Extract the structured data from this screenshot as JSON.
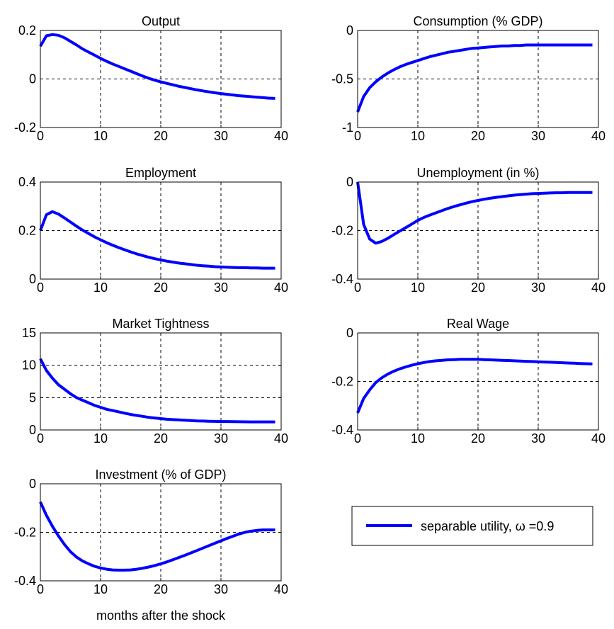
{
  "figure": {
    "xlabel": "months after the shock"
  },
  "legend": {
    "label": "separable utility, ω =0.9",
    "color": "#0000ff"
  },
  "chart_data": [
    {
      "type": "line",
      "title": "Output",
      "xlim": [
        0,
        40
      ],
      "ylim": [
        -0.2,
        0.2
      ],
      "xticks": [
        0,
        10,
        20,
        30,
        40
      ],
      "yticks": [
        -0.2,
        0,
        0.2
      ],
      "ytick_labels": [
        "-0.2",
        "0",
        "0.2"
      ],
      "xticks_shown": true,
      "grid": true,
      "series": [
        {
          "color": "#0000ff",
          "x": [
            0,
            1,
            2,
            3,
            4,
            5,
            6,
            7,
            8,
            9,
            10,
            11,
            12,
            13,
            14,
            15,
            16,
            17,
            18,
            19,
            20,
            21,
            22,
            23,
            24,
            25,
            26,
            27,
            28,
            29,
            30,
            31,
            32,
            33,
            34,
            35,
            36,
            37,
            38,
            39
          ],
          "values": [
            0.135,
            0.178,
            0.183,
            0.18,
            0.17,
            0.155,
            0.14,
            0.124,
            0.111,
            0.098,
            0.085,
            0.073,
            0.062,
            0.052,
            0.042,
            0.032,
            0.022,
            0.012,
            0.003,
            -0.005,
            -0.012,
            -0.018,
            -0.024,
            -0.03,
            -0.035,
            -0.04,
            -0.045,
            -0.049,
            -0.053,
            -0.057,
            -0.06,
            -0.063,
            -0.066,
            -0.069,
            -0.071,
            -0.073,
            -0.075,
            -0.077,
            -0.079,
            -0.08
          ]
        }
      ]
    },
    {
      "type": "line",
      "title": "Consumption (% GDP)",
      "xlim": [
        0,
        40
      ],
      "ylim": [
        -1,
        0
      ],
      "xticks": [
        0,
        10,
        20,
        30,
        40
      ],
      "yticks": [
        -1,
        -0.5,
        0
      ],
      "ytick_labels": [
        "-1",
        "-0.5",
        "0"
      ],
      "xticks_shown": true,
      "grid": true,
      "series": [
        {
          "color": "#0000ff",
          "x": [
            0,
            1,
            2,
            3,
            4,
            5,
            6,
            7,
            8,
            9,
            10,
            11,
            12,
            13,
            14,
            15,
            16,
            17,
            18,
            19,
            20,
            21,
            22,
            23,
            24,
            25,
            26,
            27,
            28,
            29,
            30,
            31,
            32,
            33,
            34,
            35,
            36,
            37,
            38,
            39
          ],
          "values": [
            -0.84,
            -0.68,
            -0.59,
            -0.53,
            -0.48,
            -0.44,
            -0.405,
            -0.375,
            -0.35,
            -0.33,
            -0.31,
            -0.29,
            -0.27,
            -0.255,
            -0.24,
            -0.225,
            -0.215,
            -0.205,
            -0.195,
            -0.185,
            -0.18,
            -0.175,
            -0.17,
            -0.165,
            -0.16,
            -0.16,
            -0.155,
            -0.155,
            -0.15,
            -0.15,
            -0.15,
            -0.15,
            -0.15,
            -0.15,
            -0.15,
            -0.15,
            -0.15,
            -0.15,
            -0.15,
            -0.15
          ]
        }
      ]
    },
    {
      "type": "line",
      "title": "Employment",
      "xlim": [
        0,
        40
      ],
      "ylim": [
        0,
        0.4
      ],
      "xticks": [
        0,
        10,
        20,
        30,
        40
      ],
      "yticks": [
        0,
        0.2,
        0.4
      ],
      "ytick_labels": [
        "0",
        "0.2",
        "0.4"
      ],
      "xticks_shown": true,
      "grid": true,
      "series": [
        {
          "color": "#0000ff",
          "x": [
            0,
            1,
            2,
            3,
            4,
            5,
            6,
            7,
            8,
            9,
            10,
            11,
            12,
            13,
            14,
            15,
            16,
            17,
            18,
            19,
            20,
            21,
            22,
            23,
            24,
            25,
            26,
            27,
            28,
            29,
            30,
            31,
            32,
            33,
            34,
            35,
            36,
            37,
            38,
            39
          ],
          "values": [
            0.2,
            0.265,
            0.278,
            0.268,
            0.252,
            0.235,
            0.218,
            0.202,
            0.188,
            0.174,
            0.162,
            0.15,
            0.14,
            0.13,
            0.121,
            0.112,
            0.104,
            0.097,
            0.09,
            0.084,
            0.079,
            0.074,
            0.07,
            0.066,
            0.063,
            0.06,
            0.057,
            0.055,
            0.053,
            0.051,
            0.05,
            0.049,
            0.048,
            0.047,
            0.047,
            0.046,
            0.046,
            0.045,
            0.045,
            0.045
          ]
        }
      ]
    },
    {
      "type": "line",
      "title": "Unemployment (in %)",
      "xlim": [
        0,
        40
      ],
      "ylim": [
        -0.4,
        0
      ],
      "xticks": [
        0,
        10,
        20,
        30,
        40
      ],
      "yticks": [
        -0.4,
        -0.2,
        0
      ],
      "ytick_labels": [
        "-0.4",
        "-0.2",
        "0"
      ],
      "xticks_shown": true,
      "grid": true,
      "series": [
        {
          "color": "#0000ff",
          "x": [
            0,
            1,
            2,
            3,
            4,
            5,
            6,
            7,
            8,
            9,
            10,
            11,
            12,
            13,
            14,
            15,
            16,
            17,
            18,
            19,
            20,
            21,
            22,
            23,
            24,
            25,
            26,
            27,
            28,
            29,
            30,
            31,
            32,
            33,
            34,
            35,
            36,
            37,
            38,
            39
          ],
          "values": [
            0,
            -0.175,
            -0.235,
            -0.252,
            -0.245,
            -0.232,
            -0.217,
            -0.202,
            -0.188,
            -0.173,
            -0.158,
            -0.146,
            -0.136,
            -0.127,
            -0.118,
            -0.109,
            -0.101,
            -0.094,
            -0.087,
            -0.081,
            -0.076,
            -0.071,
            -0.067,
            -0.063,
            -0.06,
            -0.057,
            -0.054,
            -0.052,
            -0.05,
            -0.048,
            -0.047,
            -0.046,
            -0.045,
            -0.044,
            -0.044,
            -0.043,
            -0.043,
            -0.043,
            -0.043,
            -0.043
          ]
        }
      ]
    },
    {
      "type": "line",
      "title": "Market Tightness",
      "xlim": [
        0,
        40
      ],
      "ylim": [
        0,
        15
      ],
      "xticks": [
        0,
        10,
        20,
        30,
        40
      ],
      "yticks": [
        0,
        5,
        10,
        15
      ],
      "ytick_labels": [
        "0",
        "5",
        "10",
        "15"
      ],
      "xticks_shown": true,
      "grid": true,
      "series": [
        {
          "color": "#0000ff",
          "x": [
            0,
            1,
            2,
            3,
            4,
            5,
            6,
            7,
            8,
            9,
            10,
            11,
            12,
            13,
            14,
            15,
            16,
            17,
            18,
            19,
            20,
            21,
            22,
            23,
            24,
            25,
            26,
            27,
            28,
            29,
            30,
            31,
            32,
            33,
            34,
            35,
            36,
            37,
            38,
            39
          ],
          "values": [
            11.0,
            9.2,
            8.0,
            7.0,
            6.3,
            5.6,
            5.0,
            4.6,
            4.2,
            3.8,
            3.5,
            3.2,
            3.0,
            2.8,
            2.6,
            2.4,
            2.25,
            2.1,
            1.95,
            1.85,
            1.75,
            1.65,
            1.6,
            1.55,
            1.5,
            1.45,
            1.4,
            1.38,
            1.35,
            1.33,
            1.3,
            1.3,
            1.28,
            1.27,
            1.26,
            1.25,
            1.25,
            1.25,
            1.25,
            1.25
          ]
        }
      ]
    },
    {
      "type": "line",
      "title": "Real Wage",
      "xlim": [
        0,
        40
      ],
      "ylim": [
        -0.4,
        0
      ],
      "xticks": [
        0,
        10,
        20,
        30,
        40
      ],
      "yticks": [
        -0.4,
        -0.2,
        0
      ],
      "ytick_labels": [
        "-0.4",
        "-0.2",
        "0"
      ],
      "xticks_shown": true,
      "grid": true,
      "series": [
        {
          "color": "#0000ff",
          "x": [
            0,
            1,
            2,
            3,
            4,
            5,
            6,
            7,
            8,
            9,
            10,
            11,
            12,
            13,
            14,
            15,
            16,
            17,
            18,
            19,
            20,
            21,
            22,
            23,
            24,
            25,
            26,
            27,
            28,
            29,
            30,
            31,
            32,
            33,
            34,
            35,
            36,
            37,
            38,
            39
          ],
          "values": [
            -0.33,
            -0.27,
            -0.235,
            -0.205,
            -0.185,
            -0.17,
            -0.158,
            -0.148,
            -0.14,
            -0.133,
            -0.127,
            -0.122,
            -0.118,
            -0.115,
            -0.113,
            -0.111,
            -0.11,
            -0.109,
            -0.109,
            -0.109,
            -0.109,
            -0.11,
            -0.111,
            -0.112,
            -0.113,
            -0.114,
            -0.115,
            -0.116,
            -0.117,
            -0.118,
            -0.119,
            -0.12,
            -0.121,
            -0.122,
            -0.123,
            -0.124,
            -0.125,
            -0.126,
            -0.127,
            -0.128
          ]
        }
      ]
    },
    {
      "type": "line",
      "title": "Investment (% of GDP)",
      "xlim": [
        0,
        40
      ],
      "ylim": [
        -0.4,
        0
      ],
      "xticks": [
        0,
        10,
        20,
        30,
        40
      ],
      "yticks": [
        -0.4,
        -0.2,
        0
      ],
      "ytick_labels": [
        "-0.4",
        "-0.2",
        "0"
      ],
      "xticks_shown": true,
      "grid": true,
      "series": [
        {
          "color": "#0000ff",
          "x": [
            0,
            1,
            2,
            3,
            4,
            5,
            6,
            7,
            8,
            9,
            10,
            11,
            12,
            13,
            14,
            15,
            16,
            17,
            18,
            19,
            20,
            21,
            22,
            23,
            24,
            25,
            26,
            27,
            28,
            29,
            30,
            31,
            32,
            33,
            34,
            35,
            36,
            37,
            38,
            39
          ],
          "values": [
            -0.075,
            -0.13,
            -0.175,
            -0.215,
            -0.25,
            -0.28,
            -0.302,
            -0.318,
            -0.33,
            -0.34,
            -0.347,
            -0.352,
            -0.355,
            -0.356,
            -0.356,
            -0.355,
            -0.352,
            -0.348,
            -0.343,
            -0.337,
            -0.33,
            -0.322,
            -0.313,
            -0.304,
            -0.295,
            -0.285,
            -0.275,
            -0.265,
            -0.255,
            -0.245,
            -0.235,
            -0.225,
            -0.216,
            -0.207,
            -0.2,
            -0.195,
            -0.192,
            -0.19,
            -0.19,
            -0.19
          ]
        }
      ]
    }
  ]
}
